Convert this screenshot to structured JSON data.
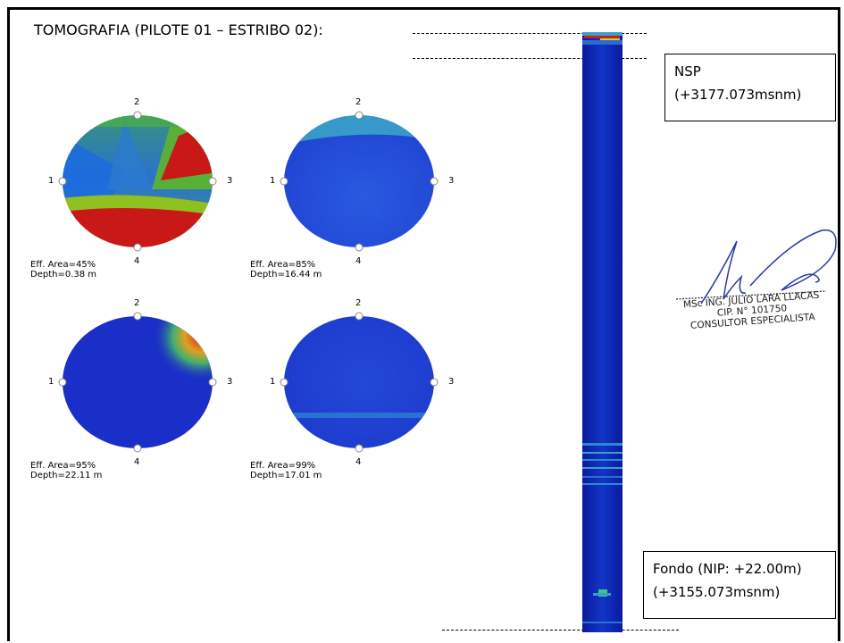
{
  "title": "TOMOGRAFIA (PILOTE 01 – ESTRIBO 02):",
  "nsp_box": {
    "line1": "NSP",
    "line2": "(+3177.073msnm)"
  },
  "fondo_box": {
    "line1": "Fondo (NIP: +22.00m)",
    "line2": "(+3155.073msnm)"
  },
  "tomograms": [
    {
      "area": "Eff. Area=45%",
      "depth": "Depth=0.38 m"
    },
    {
      "area": "Eff. Area=85%",
      "depth": "Depth=16.44 m"
    },
    {
      "area": "Eff. Area=95%",
      "depth": "Depth=22.11 m"
    },
    {
      "area": "Eff. Area=99%",
      "depth": "Depth=17.01 m"
    }
  ],
  "sensor_labels": {
    "top": "2",
    "left": "1",
    "right": "3",
    "bottom": "4"
  },
  "signature": {
    "name": "MSc ING. JULIO LARA LLACAS",
    "cip": "CIP. N° 101750",
    "role": "CONSULTOR ESPECIALISTA"
  }
}
